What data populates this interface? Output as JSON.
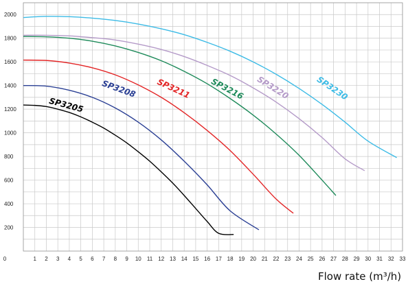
{
  "chart_data": {
    "type": "line",
    "title": "",
    "xlabel": "Flow rate (m³/h)",
    "ylabel": "",
    "xlim": [
      0,
      33
    ],
    "ylim": [
      0,
      2100
    ],
    "xticks": [
      0,
      1,
      2,
      3,
      4,
      5,
      6,
      7,
      8,
      9,
      10,
      11,
      12,
      13,
      14,
      15,
      16,
      17,
      18,
      19,
      20,
      21,
      22,
      23,
      24,
      25,
      26,
      27,
      28,
      29,
      30,
      31,
      32,
      33
    ],
    "yticks": [
      200,
      400,
      600,
      800,
      1000,
      1200,
      1400,
      1600,
      1800,
      2000
    ],
    "grid": true,
    "legend": "none",
    "series": [
      {
        "name": "SP3205",
        "color": "#000000",
        "x": [
          0,
          1,
          2,
          3,
          4,
          5,
          6,
          7,
          8,
          9,
          10,
          11,
          12,
          13,
          14,
          15,
          16,
          17,
          18.3
        ],
        "y": [
          1235,
          1232,
          1222,
          1200,
          1172,
          1135,
          1090,
          1040,
          980,
          915,
          840,
          760,
          670,
          575,
          470,
          360,
          250,
          150,
          140
        ]
      },
      {
        "name": "SP3208",
        "color": "#2a3f94",
        "x": [
          0,
          2,
          4,
          6,
          8,
          10,
          12,
          14,
          16,
          18,
          20.5
        ],
        "y": [
          1400,
          1395,
          1360,
          1300,
          1210,
          1090,
          940,
          760,
          560,
          340,
          180
        ]
      },
      {
        "name": "SP3211",
        "color": "#e32526",
        "x": [
          0,
          2,
          4,
          6,
          8,
          10,
          12,
          14,
          16,
          18,
          20,
          22,
          23.5
        ],
        "y": [
          1615,
          1612,
          1590,
          1550,
          1490,
          1405,
          1300,
          1170,
          1020,
          850,
          650,
          440,
          320
        ]
      },
      {
        "name": "SP3216",
        "color": "#1e8a5a",
        "x": [
          0,
          2,
          4,
          6,
          8,
          10,
          12,
          14,
          16,
          18,
          20,
          22,
          24,
          26,
          27.2
        ],
        "y": [
          1815,
          1812,
          1800,
          1775,
          1735,
          1680,
          1610,
          1520,
          1415,
          1290,
          1150,
          990,
          810,
          600,
          470
        ]
      },
      {
        "name": "SP3220",
        "color": "#b49ac8",
        "x": [
          0,
          2,
          4,
          6,
          8,
          10,
          12,
          14,
          16,
          18,
          20,
          22,
          24,
          26,
          28,
          29.7
        ],
        "y": [
          1825,
          1825,
          1820,
          1805,
          1785,
          1750,
          1705,
          1645,
          1570,
          1485,
          1380,
          1260,
          1120,
          960,
          780,
          680
        ]
      },
      {
        "name": "SP3230",
        "color": "#3cbbe6",
        "x": [
          0,
          2,
          4,
          6,
          8,
          10,
          12,
          14,
          16,
          18,
          20,
          22,
          24,
          26,
          28,
          30,
          32.5
        ],
        "y": [
          1975,
          1985,
          1982,
          1970,
          1950,
          1920,
          1880,
          1830,
          1765,
          1690,
          1600,
          1495,
          1375,
          1240,
          1090,
          930,
          790
        ]
      }
    ]
  }
}
